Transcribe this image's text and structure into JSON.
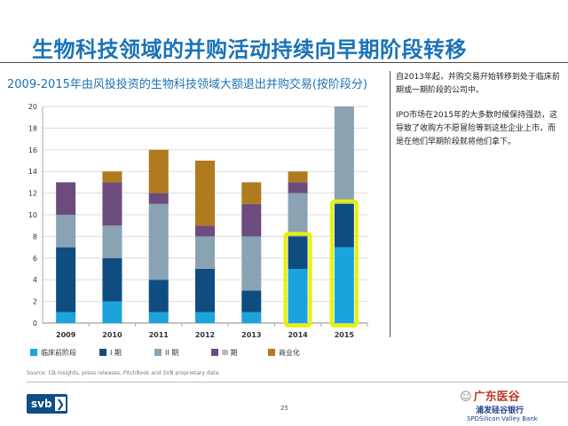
{
  "header": {
    "title": "生物科技领域的并购活动持续向早期阶段转移",
    "chart_subtitle": "2009-2015年由风投投资的生物科技领域大额退出并购交易(按阶段分)"
  },
  "notes": [
    "自2013年起，并购交易开始转移到处于临床前期或一期阶段的公司中。",
    "IPO市场在2015年的大多数时候保持强劲，这导致了收购方不愿冒险等到这些企业上市，而是在他们早期阶段就将他们拿下。"
  ],
  "footer": {
    "source": "Source: CB Insights, press releases, PitchBook and SVB proprietary data",
    "page_number": "25",
    "logo_text": "svb",
    "logo_chevron": "❯",
    "watermark_icon": "☺",
    "watermark": "广东医谷",
    "bank_cn": "浦发硅谷银行",
    "bank_en": "SPDSilicon Valley Bank"
  },
  "chart_data": {
    "type": "bar",
    "stacked": true,
    "categories": [
      "2009",
      "2010",
      "2011",
      "2012",
      "2013",
      "2014",
      "2015"
    ],
    "series": [
      {
        "name": "临床前阶段",
        "color": "#1ba3dc",
        "values": [
          1,
          2,
          1,
          1,
          1,
          5,
          7
        ]
      },
      {
        "name": "I 期",
        "color": "#0f4c80",
        "values": [
          6,
          4,
          3,
          4,
          2,
          3,
          4
        ]
      },
      {
        "name": "II 期",
        "color": "#8aa3b3",
        "values": [
          3,
          3,
          7,
          3,
          5,
          4,
          9
        ]
      },
      {
        "name": "III 期",
        "color": "#6b4c7d",
        "values": [
          3,
          4,
          1,
          1,
          3,
          1,
          0
        ]
      },
      {
        "name": "商业化",
        "color": "#b07a1e",
        "values": [
          0,
          1,
          4,
          6,
          2,
          1,
          0
        ]
      }
    ],
    "ylim": [
      0,
      20
    ],
    "yticks": [
      0,
      2,
      4,
      6,
      8,
      10,
      12,
      14,
      16,
      18,
      20
    ],
    "highlighted": [
      {
        "category": "2014",
        "series": [
          "临床前阶段",
          "I 期"
        ]
      },
      {
        "category": "2015",
        "series": [
          "临床前阶段",
          "I 期"
        ]
      }
    ],
    "highlight_color": "#e9f200",
    "grid": "horizontal",
    "legend": "bottom",
    "title": "2009-2015年由风投投资的生物科技领域大额退出并购交易(按阶段分)"
  }
}
